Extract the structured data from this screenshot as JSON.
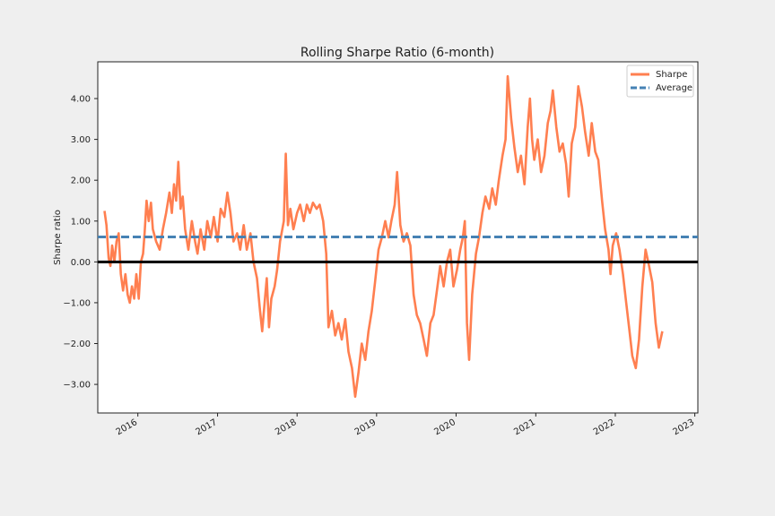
{
  "chart_data": {
    "type": "line",
    "title": "Rolling Sharpe Ratio (6-month)",
    "xlabel": "",
    "ylabel": "Sharpe ratio",
    "xlim": [
      "2015-07-01",
      "2023-01-15"
    ],
    "ylim": [
      -3.7,
      4.9
    ],
    "y_ticks": [
      4,
      3,
      2,
      1,
      0,
      -1,
      -2,
      -3
    ],
    "y_tick_labels": [
      "4.00",
      "3.00",
      "2.00",
      "1.00",
      "0.00",
      "−1.00",
      "−2.00",
      "−3.00"
    ],
    "x_tick_labels": [
      "2016",
      "2017",
      "2018",
      "2019",
      "2020",
      "2021",
      "2022",
      "2023"
    ],
    "grid": false,
    "legend_position": "top-right",
    "reference_line": {
      "value": 0,
      "color": "#000000"
    },
    "series": [
      {
        "name": "Sharpe",
        "color": "#ff7f50",
        "style": "solid",
        "points": [
          [
            "2015-08-01",
            1.25
          ],
          [
            "2015-08-10",
            0.9
          ],
          [
            "2015-08-20",
            0.1
          ],
          [
            "2015-08-28",
            -0.1
          ],
          [
            "2015-09-05",
            0.4
          ],
          [
            "2015-09-15",
            0.0
          ],
          [
            "2015-09-25",
            0.5
          ],
          [
            "2015-10-05",
            0.7
          ],
          [
            "2015-10-15",
            -0.3
          ],
          [
            "2015-10-25",
            -0.7
          ],
          [
            "2015-11-05",
            -0.3
          ],
          [
            "2015-11-15",
            -0.8
          ],
          [
            "2015-11-25",
            -1.0
          ],
          [
            "2015-12-05",
            -0.6
          ],
          [
            "2015-12-15",
            -0.9
          ],
          [
            "2015-12-25",
            -0.3
          ],
          [
            "2016-01-05",
            -0.9
          ],
          [
            "2016-01-15",
            0.0
          ],
          [
            "2016-01-25",
            0.2
          ],
          [
            "2016-02-01",
            0.7
          ],
          [
            "2016-02-10",
            1.5
          ],
          [
            "2016-02-20",
            1.0
          ],
          [
            "2016-03-01",
            1.45
          ],
          [
            "2016-03-10",
            0.8
          ],
          [
            "2016-03-25",
            0.5
          ],
          [
            "2016-04-10",
            0.3
          ],
          [
            "2016-04-25",
            0.8
          ],
          [
            "2016-05-10",
            1.2
          ],
          [
            "2016-05-25",
            1.7
          ],
          [
            "2016-06-05",
            1.2
          ],
          [
            "2016-06-15",
            1.9
          ],
          [
            "2016-06-25",
            1.5
          ],
          [
            "2016-07-05",
            2.45
          ],
          [
            "2016-07-15",
            1.3
          ],
          [
            "2016-07-25",
            1.6
          ],
          [
            "2016-08-05",
            0.8
          ],
          [
            "2016-08-20",
            0.3
          ],
          [
            "2016-09-05",
            1.0
          ],
          [
            "2016-09-20",
            0.5
          ],
          [
            "2016-10-01",
            0.2
          ],
          [
            "2016-10-15",
            0.8
          ],
          [
            "2016-11-01",
            0.3
          ],
          [
            "2016-11-15",
            1.0
          ],
          [
            "2016-12-01",
            0.6
          ],
          [
            "2016-12-15",
            1.1
          ],
          [
            "2017-01-01",
            0.5
          ],
          [
            "2017-01-15",
            1.3
          ],
          [
            "2017-02-01",
            1.1
          ],
          [
            "2017-02-15",
            1.7
          ],
          [
            "2017-03-01",
            1.2
          ],
          [
            "2017-03-15",
            0.5
          ],
          [
            "2017-04-01",
            0.7
          ],
          [
            "2017-04-15",
            0.3
          ],
          [
            "2017-05-01",
            0.9
          ],
          [
            "2017-05-15",
            0.3
          ],
          [
            "2017-06-01",
            0.7
          ],
          [
            "2017-06-15",
            0.0
          ],
          [
            "2017-07-01",
            -0.4
          ],
          [
            "2017-07-15",
            -1.2
          ],
          [
            "2017-07-25",
            -1.7
          ],
          [
            "2017-08-05",
            -1.0
          ],
          [
            "2017-08-15",
            -0.4
          ],
          [
            "2017-08-25",
            -1.6
          ],
          [
            "2017-09-05",
            -0.9
          ],
          [
            "2017-09-20",
            -0.6
          ],
          [
            "2017-10-01",
            -0.2
          ],
          [
            "2017-10-15",
            0.5
          ],
          [
            "2017-11-01",
            1.0
          ],
          [
            "2017-11-10",
            2.65
          ],
          [
            "2017-11-20",
            0.9
          ],
          [
            "2017-12-01",
            1.3
          ],
          [
            "2017-12-15",
            0.8
          ],
          [
            "2018-01-01",
            1.2
          ],
          [
            "2018-01-15",
            1.4
          ],
          [
            "2018-02-01",
            1.0
          ],
          [
            "2018-02-15",
            1.4
          ],
          [
            "2018-03-01",
            1.2
          ],
          [
            "2018-03-15",
            1.45
          ],
          [
            "2018-04-01",
            1.3
          ],
          [
            "2018-04-15",
            1.4
          ],
          [
            "2018-05-01",
            1.0
          ],
          [
            "2018-05-15",
            0.2
          ],
          [
            "2018-05-25",
            -1.6
          ],
          [
            "2018-06-10",
            -1.2
          ],
          [
            "2018-06-25",
            -1.8
          ],
          [
            "2018-07-10",
            -1.5
          ],
          [
            "2018-07-25",
            -1.9
          ],
          [
            "2018-08-10",
            -1.4
          ],
          [
            "2018-08-25",
            -2.2
          ],
          [
            "2018-09-10",
            -2.6
          ],
          [
            "2018-09-25",
            -3.3
          ],
          [
            "2018-10-10",
            -2.7
          ],
          [
            "2018-10-25",
            -2.0
          ],
          [
            "2018-11-10",
            -2.4
          ],
          [
            "2018-11-25",
            -1.7
          ],
          [
            "2018-12-10",
            -1.2
          ],
          [
            "2018-12-25",
            -0.5
          ],
          [
            "2019-01-10",
            0.3
          ],
          [
            "2019-01-25",
            0.6
          ],
          [
            "2019-02-10",
            1.0
          ],
          [
            "2019-02-25",
            0.6
          ],
          [
            "2019-03-10",
            1.0
          ],
          [
            "2019-03-25",
            1.4
          ],
          [
            "2019-04-05",
            2.2
          ],
          [
            "2019-04-20",
            0.9
          ],
          [
            "2019-05-05",
            0.5
          ],
          [
            "2019-05-20",
            0.7
          ],
          [
            "2019-06-05",
            0.4
          ],
          [
            "2019-06-20",
            -0.8
          ],
          [
            "2019-07-05",
            -1.3
          ],
          [
            "2019-07-20",
            -1.5
          ],
          [
            "2019-08-05",
            -1.9
          ],
          [
            "2019-08-20",
            -2.3
          ],
          [
            "2019-09-05",
            -1.5
          ],
          [
            "2019-09-20",
            -1.3
          ],
          [
            "2019-10-05",
            -0.7
          ],
          [
            "2019-10-20",
            -0.1
          ],
          [
            "2019-11-05",
            -0.6
          ],
          [
            "2019-11-20",
            0.0
          ],
          [
            "2019-12-05",
            0.3
          ],
          [
            "2019-12-20",
            -0.6
          ],
          [
            "2020-01-05",
            -0.2
          ],
          [
            "2020-01-20",
            0.3
          ],
          [
            "2020-02-01",
            0.6
          ],
          [
            "2020-02-10",
            1.0
          ],
          [
            "2020-02-20",
            -1.5
          ],
          [
            "2020-03-01",
            -2.4
          ],
          [
            "2020-03-15",
            -0.8
          ],
          [
            "2020-04-01",
            0.2
          ],
          [
            "2020-04-15",
            0.6
          ],
          [
            "2020-05-01",
            1.2
          ],
          [
            "2020-05-15",
            1.6
          ],
          [
            "2020-06-01",
            1.3
          ],
          [
            "2020-06-15",
            1.8
          ],
          [
            "2020-07-01",
            1.4
          ],
          [
            "2020-07-15",
            2.0
          ],
          [
            "2020-08-01",
            2.6
          ],
          [
            "2020-08-15",
            3.0
          ],
          [
            "2020-08-25",
            4.55
          ],
          [
            "2020-09-10",
            3.5
          ],
          [
            "2020-09-25",
            2.8
          ],
          [
            "2020-10-10",
            2.2
          ],
          [
            "2020-10-25",
            2.6
          ],
          [
            "2020-11-10",
            1.9
          ],
          [
            "2020-11-25",
            3.3
          ],
          [
            "2020-12-05",
            4.0
          ],
          [
            "2020-12-15",
            3.0
          ],
          [
            "2020-12-25",
            2.5
          ],
          [
            "2021-01-10",
            3.0
          ],
          [
            "2021-01-25",
            2.2
          ],
          [
            "2021-02-10",
            2.6
          ],
          [
            "2021-02-25",
            3.4
          ],
          [
            "2021-03-10",
            3.7
          ],
          [
            "2021-03-20",
            4.2
          ],
          [
            "2021-04-05",
            3.3
          ],
          [
            "2021-04-20",
            2.7
          ],
          [
            "2021-05-05",
            2.9
          ],
          [
            "2021-05-20",
            2.4
          ],
          [
            "2021-06-01",
            1.6
          ],
          [
            "2021-06-15",
            2.9
          ],
          [
            "2021-07-01",
            3.3
          ],
          [
            "2021-07-15",
            4.3
          ],
          [
            "2021-08-01",
            3.8
          ],
          [
            "2021-08-15",
            3.2
          ],
          [
            "2021-09-01",
            2.6
          ],
          [
            "2021-09-15",
            3.4
          ],
          [
            "2021-10-01",
            2.7
          ],
          [
            "2021-10-15",
            2.5
          ],
          [
            "2021-11-01",
            1.5
          ],
          [
            "2021-11-15",
            0.8
          ],
          [
            "2021-12-01",
            0.3
          ],
          [
            "2021-12-10",
            -0.3
          ],
          [
            "2021-12-20",
            0.4
          ],
          [
            "2022-01-05",
            0.7
          ],
          [
            "2022-01-20",
            0.3
          ],
          [
            "2022-02-05",
            -0.3
          ],
          [
            "2022-02-20",
            -1.0
          ],
          [
            "2022-03-05",
            -1.6
          ],
          [
            "2022-03-20",
            -2.3
          ],
          [
            "2022-04-05",
            -2.6
          ],
          [
            "2022-04-20",
            -1.9
          ],
          [
            "2022-05-05",
            -0.6
          ],
          [
            "2022-05-20",
            0.3
          ],
          [
            "2022-06-05",
            -0.1
          ],
          [
            "2022-06-20",
            -0.5
          ],
          [
            "2022-07-05",
            -1.5
          ],
          [
            "2022-07-20",
            -2.1
          ],
          [
            "2022-08-05",
            -1.7
          ]
        ]
      },
      {
        "name": "Average",
        "color": "#4682b4",
        "style": "dashed",
        "value": 0.61
      }
    ]
  }
}
